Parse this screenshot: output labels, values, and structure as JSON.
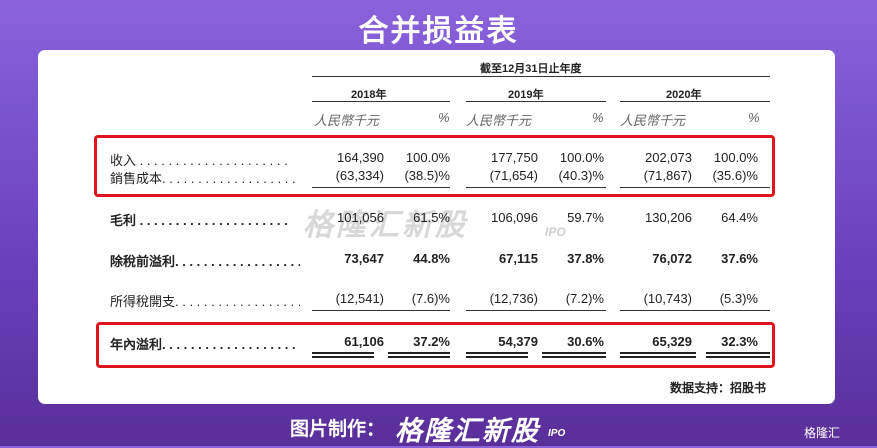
{
  "title": "合并损益表",
  "header": {
    "period": "截至12月31日止年度",
    "years": [
      "2018年",
      "2019年",
      "2020年"
    ],
    "unit": "人民幣千元",
    "pct": "%"
  },
  "rows": {
    "revenue": {
      "label": "收入 . . . . . . . . . . . . . . . . . . . . .",
      "vals": [
        "164,390",
        "100.0%",
        "177,750",
        "100.0%",
        "202,073",
        "100.0%"
      ]
    },
    "cogs": {
      "label": "銷售成本. . . . . . . . . . . . . . . . . . . .",
      "vals": [
        "(63,334)",
        "(38.5)%",
        "(71,654)",
        "(40.3)%",
        "(71,867)",
        "(35.6)%"
      ]
    },
    "gross": {
      "label": "毛利 . . . . . . . . . . . . . . . . . . . . .",
      "vals": [
        "101,056",
        "61.5%",
        "106,096",
        "59.7%",
        "130,206",
        "64.4%"
      ]
    },
    "pretax": {
      "label": "除稅前溢利. . . . . . . . . . . . . . . . . .",
      "vals": [
        "73,647",
        "44.8%",
        "67,115",
        "37.8%",
        "76,072",
        "37.6%"
      ]
    },
    "tax": {
      "label": "所得稅開支. . . . . . . . . . . . . . . . . . .",
      "vals": [
        "(12,541)",
        "(7.6)%",
        "(12,736)",
        "(7.2)%",
        "(10,743)",
        "(5.3)%"
      ]
    },
    "net": {
      "label": "年內溢利. . . . . . . . . . . . . . . . . . . .",
      "vals": [
        "61,106",
        "37.2%",
        "54,379",
        "30.6%",
        "65,329",
        "32.3%"
      ]
    }
  },
  "watermark": {
    "logo": "格隆汇新股",
    "ipo": "IPO"
  },
  "source": "数据支持：招股书",
  "footer": {
    "label": "图片制作：",
    "logo": "格隆汇新股",
    "ipo": "IPO"
  },
  "corner": "格隆汇"
}
